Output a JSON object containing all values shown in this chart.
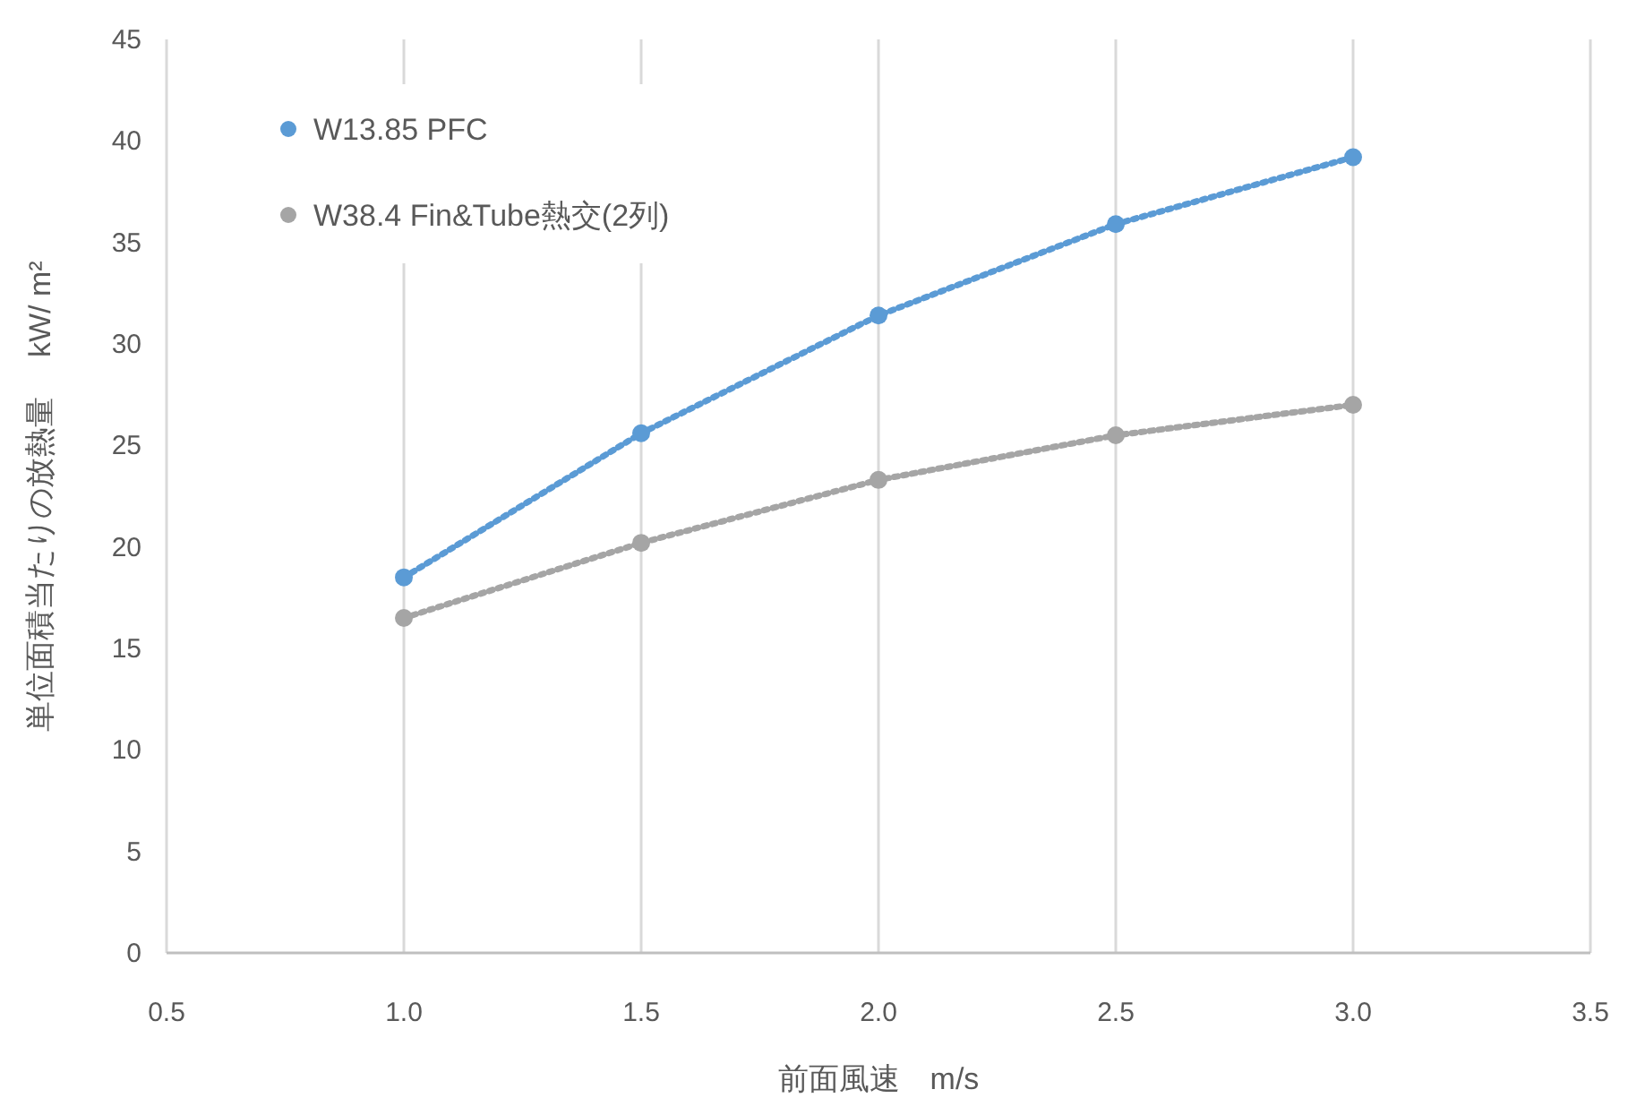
{
  "chart_data": {
    "type": "line",
    "xlabel": "前面風速　m/s",
    "ylabel": "単位面積当たりの放熱量　 kW/ m²",
    "x": [
      1.0,
      1.5,
      2.0,
      2.5,
      3.0
    ],
    "series": [
      {
        "name": "W13.85 PFC",
        "color": "#5b9bd5",
        "values": [
          18.5,
          25.6,
          31.4,
          35.9,
          39.2
        ]
      },
      {
        "name": "W38.4 Fin&Tube熱交(2列)",
        "color": "#a5a5a5",
        "values": [
          16.5,
          20.2,
          23.3,
          25.5,
          27.0
        ]
      }
    ],
    "xlim": [
      0.5,
      3.5
    ],
    "xticks": [
      {
        "value": 0.5,
        "label": "0.5"
      },
      {
        "value": 1.0,
        "label": "1.0"
      },
      {
        "value": 1.5,
        "label": "1.5"
      },
      {
        "value": 2.0,
        "label": "2.0"
      },
      {
        "value": 2.5,
        "label": "2.5"
      },
      {
        "value": 3.0,
        "label": "3.0"
      },
      {
        "value": 3.5,
        "label": "3.5"
      }
    ],
    "ylim": [
      0,
      45
    ],
    "yticks": [
      0,
      5,
      10,
      15,
      20,
      25,
      30,
      35,
      40,
      45
    ],
    "grid": "x",
    "legend": "top left",
    "marker": "circle",
    "line_style": "dotted"
  }
}
